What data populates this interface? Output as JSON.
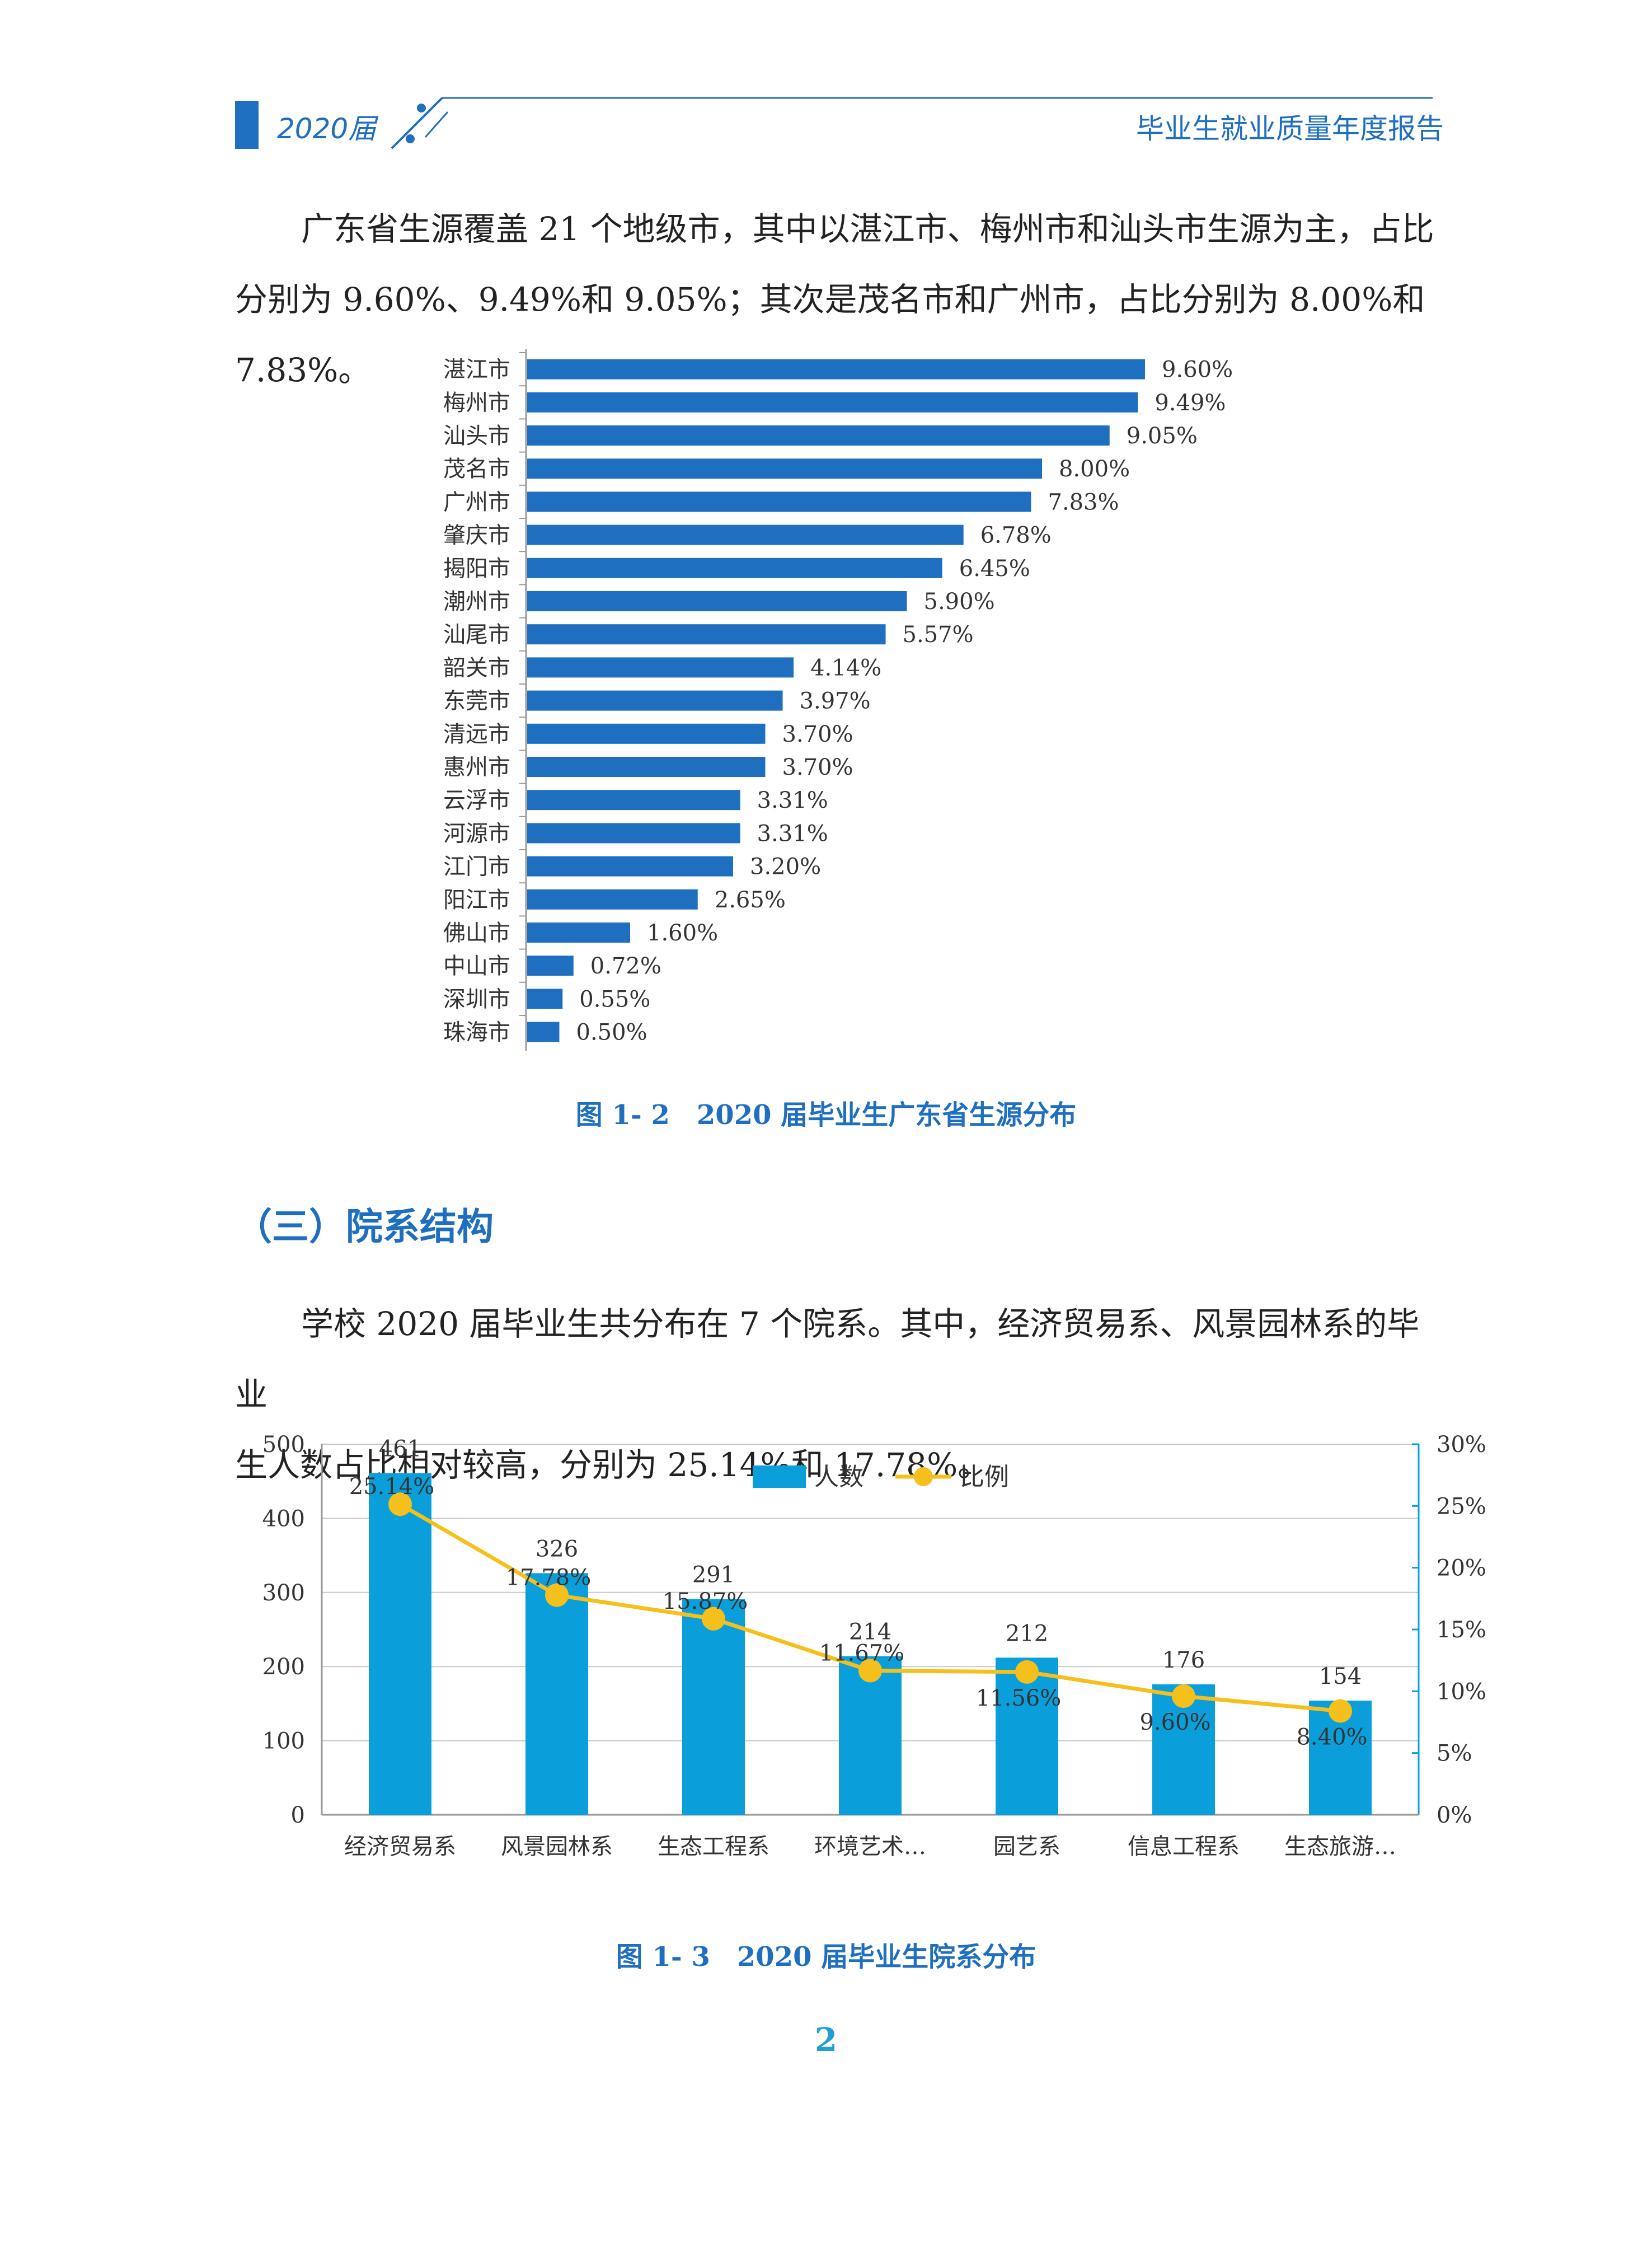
{
  "header": {
    "year": "2020届",
    "title": "毕业生就业质量年度报告"
  },
  "intro_paragraph": {
    "line1": "广东省生源覆盖 21 个地级市，其中以湛江市、梅州市和汕头市生源为主，占比",
    "line2": "分别为 9.60%、9.49%和 9.05%；其次是茂名市和广州市，占比分别为 8.00%和 7.83%。"
  },
  "caption1": "图 1- 2　2020 届毕业生广东省生源分布",
  "section_title": "（三）院系结构",
  "dept_paragraph": {
    "line1": "学校 2020 届毕业生共分布在 7 个院系。其中，经济贸易系、风景园林系的毕业",
    "line2": "生人数占比相对较高，分别为 25.14%和 17.78%。"
  },
  "caption2": "图 1- 3　2020 届毕业生院系分布",
  "page_number": "2",
  "colors": {
    "brand": "#1f6fc0",
    "bar_blue": "#1f6fc0",
    "bar_cyan": "#0a9fdb",
    "line_gold": "#f5c01c"
  },
  "chart_data": [
    {
      "type": "bar",
      "orientation": "horizontal",
      "title": "2020 届毕业生广东省生源分布",
      "categories": [
        "湛江市",
        "梅州市",
        "汕头市",
        "茂名市",
        "广州市",
        "肇庆市",
        "揭阳市",
        "潮州市",
        "汕尾市",
        "韶关市",
        "东莞市",
        "清远市",
        "惠州市",
        "云浮市",
        "河源市",
        "江门市",
        "阳江市",
        "佛山市",
        "中山市",
        "深圳市",
        "珠海市"
      ],
      "values": [
        9.6,
        9.49,
        9.05,
        8.0,
        7.83,
        6.78,
        6.45,
        5.9,
        5.57,
        4.14,
        3.97,
        3.7,
        3.7,
        3.31,
        3.31,
        3.2,
        2.65,
        1.6,
        0.72,
        0.55,
        0.5
      ],
      "labels": [
        "9.60%",
        "9.49%",
        "9.05%",
        "8.00%",
        "7.83%",
        "6.78%",
        "6.45%",
        "5.90%",
        "5.57%",
        "4.14%",
        "3.97%",
        "3.70%",
        "3.70%",
        "3.31%",
        "3.31%",
        "3.20%",
        "2.65%",
        "1.60%",
        "0.72%",
        "0.55%",
        "0.50%"
      ],
      "unit": "%",
      "xlim": [
        0,
        10
      ]
    },
    {
      "type": "bar",
      "title": "2020 届毕业生院系分布",
      "categories": [
        "经济贸易系",
        "风景园林系",
        "生态工程系",
        "环境艺术…",
        "园艺系",
        "信息工程系",
        "生态旅游…"
      ],
      "series": [
        {
          "name": "人数",
          "type": "bar",
          "axis": "left",
          "values": [
            461,
            326,
            291,
            214,
            212,
            176,
            154
          ]
        },
        {
          "name": "比例",
          "type": "line",
          "axis": "right",
          "values": [
            25.14,
            17.78,
            15.87,
            11.67,
            11.56,
            9.6,
            8.4
          ],
          "labels": [
            "25.14%",
            "17.78%",
            "15.87%",
            "11.67%",
            "11.56%",
            "9.60%",
            "8.40%"
          ]
        }
      ],
      "y_left": {
        "lim": [
          0,
          500
        ],
        "ticks": [
          "0",
          "100",
          "200",
          "300",
          "400",
          "500"
        ]
      },
      "y_right": {
        "lim": [
          0,
          30
        ],
        "ticks": [
          "0%",
          "5%",
          "10%",
          "15%",
          "20%",
          "25%",
          "30%"
        ]
      },
      "legend": [
        "人数",
        "比例"
      ],
      "legend_position": "top-center",
      "grid": true
    }
  ]
}
